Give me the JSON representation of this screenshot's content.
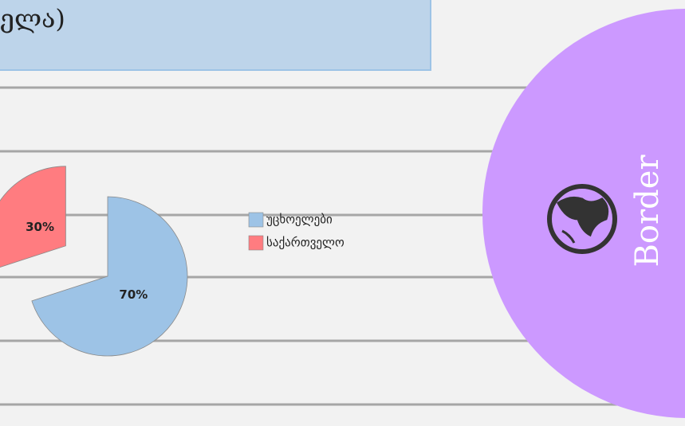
{
  "chart_data": {
    "type": "pie",
    "title": "ელა)",
    "categories": [
      "უცხოელები",
      "საქართველო"
    ],
    "values": [
      70,
      30
    ],
    "value_labels": [
      "70%",
      "30%"
    ],
    "colors": [
      "#9dc3e6",
      "#ff7c80"
    ],
    "exploded": [
      false,
      true
    ],
    "legend": "right"
  },
  "side_label": "Border"
}
